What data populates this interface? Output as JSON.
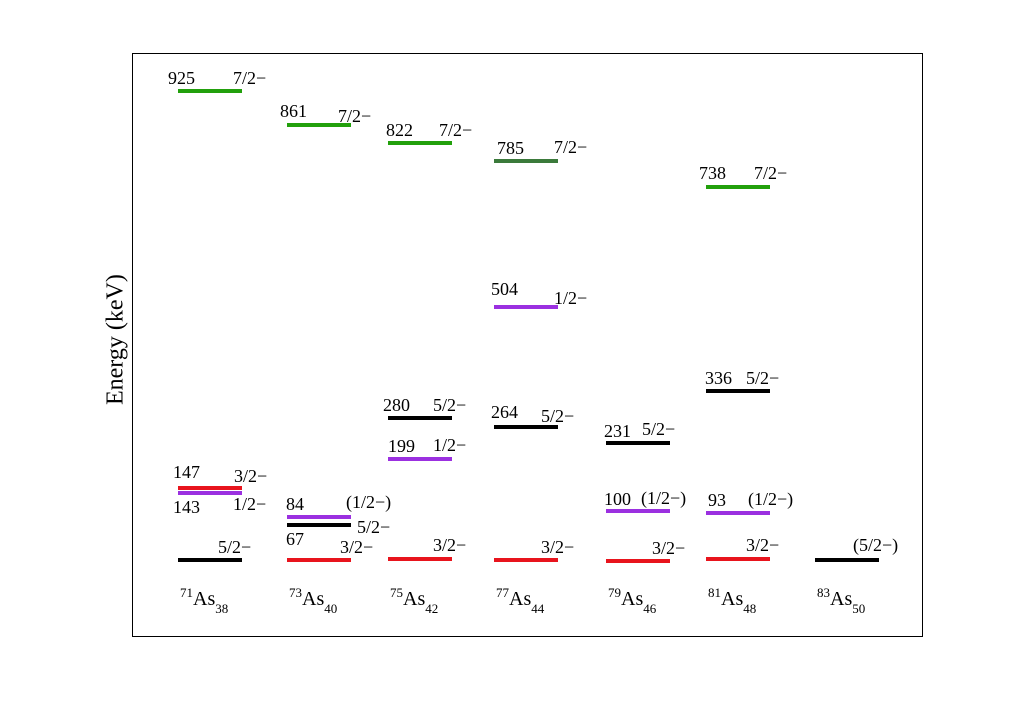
{
  "axis": {
    "ylabel": "Energy (keV)"
  },
  "colors": {
    "5/2-": "#000000",
    "3/2-": "#e8141d",
    "1/2-": "#9b30e0",
    "7/2-": "#22a00c",
    "7/2-dark": "#3b7a3b"
  },
  "nuclei": [
    {
      "id": "71as",
      "mass": "71",
      "symbol": "As",
      "neutrons": "38",
      "levels": [
        {
          "energy": "925",
          "spin": "7/2−",
          "color": "#22a00c"
        },
        {
          "energy": "147",
          "spin": "3/2−",
          "color": "#e8141d"
        },
        {
          "energy": "143",
          "spin": "1/2−",
          "color": "#9b30e0"
        },
        {
          "energy": "",
          "spin": "5/2−",
          "color": "#000000"
        }
      ]
    },
    {
      "id": "73as",
      "mass": "73",
      "symbol": "As",
      "neutrons": "40",
      "levels": [
        {
          "energy": "861",
          "spin": "7/2−",
          "color": "#22a00c"
        },
        {
          "energy": "84",
          "spin": "(1/2−)",
          "color": "#9b30e0"
        },
        {
          "energy": "67",
          "spin": "5/2−",
          "color": "#000000"
        },
        {
          "energy": "",
          "spin": "3/2−",
          "color": "#e8141d"
        }
      ]
    },
    {
      "id": "75as",
      "mass": "75",
      "symbol": "As",
      "neutrons": "42",
      "levels": [
        {
          "energy": "822",
          "spin": "7/2−",
          "color": "#22a00c"
        },
        {
          "energy": "280",
          "spin": "5/2−",
          "color": "#000000"
        },
        {
          "energy": "199",
          "spin": "1/2−",
          "color": "#9b30e0"
        },
        {
          "energy": "",
          "spin": "3/2−",
          "color": "#e8141d"
        }
      ]
    },
    {
      "id": "77as",
      "mass": "77",
      "symbol": "As",
      "neutrons": "44",
      "levels": [
        {
          "energy": "785",
          "spin": "7/2−",
          "color": "#3b7a3b"
        },
        {
          "energy": "504",
          "spin": "1/2−",
          "color": "#9b30e0"
        },
        {
          "energy": "264",
          "spin": "5/2−",
          "color": "#000000"
        },
        {
          "energy": "",
          "spin": "3/2−",
          "color": "#e8141d"
        }
      ]
    },
    {
      "id": "79as",
      "mass": "79",
      "symbol": "As",
      "neutrons": "46",
      "levels": [
        {
          "energy": "231",
          "spin": "5/2−",
          "color": "#000000"
        },
        {
          "energy": "100",
          "spin": "(1/2−)",
          "color": "#9b30e0"
        },
        {
          "energy": "",
          "spin": "3/2−",
          "color": "#e8141d"
        }
      ]
    },
    {
      "id": "81as",
      "mass": "81",
      "symbol": "As",
      "neutrons": "48",
      "levels": [
        {
          "energy": "738",
          "spin": "7/2−",
          "color": "#22a00c"
        },
        {
          "energy": "336",
          "spin": "5/2−",
          "color": "#000000"
        },
        {
          "energy": "93",
          "spin": "(1/2−)",
          "color": "#9b30e0"
        },
        {
          "energy": "",
          "spin": "3/2−",
          "color": "#e8141d"
        }
      ]
    },
    {
      "id": "83as",
      "mass": "83",
      "symbol": "As",
      "neutrons": "50",
      "levels": [
        {
          "energy": "",
          "spin": "(5/2−)",
          "color": "#000000"
        }
      ]
    }
  ]
}
